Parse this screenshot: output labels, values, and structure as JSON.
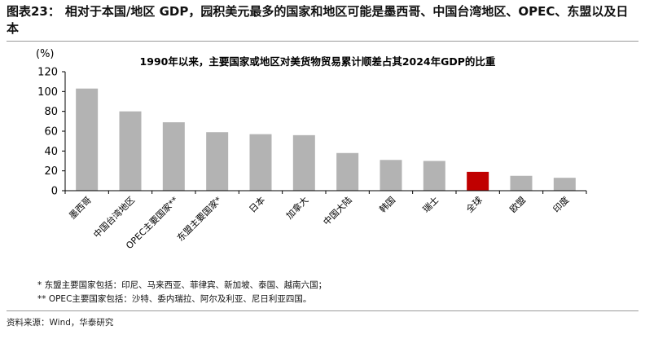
{
  "figure": {
    "label": "图表23：",
    "title": "相对于本国/地区 GDP，园积美元最多的国家和地区可能是墨西哥、中国台湾地区、OPEC、东盟以及日本"
  },
  "chart_data": {
    "type": "bar",
    "title": "1990年以来，主要国家或地区对美货物贸易累计顺差占其2024年GDP的比重",
    "ylabel": "(%)",
    "xlabel": "",
    "ylim": [
      0,
      120
    ],
    "yticks": [
      0,
      20,
      40,
      60,
      80,
      100,
      120
    ],
    "grid": false,
    "categories": [
      "墨西哥",
      "中国台湾地区",
      "OPEC主要国家**",
      "东盟主要国家*",
      "日本",
      "加拿大",
      "中国大陆",
      "韩国",
      "瑞士",
      "全球",
      "欧盟",
      "印度"
    ],
    "values": [
      103,
      80,
      69,
      59,
      57,
      56,
      38,
      31,
      30,
      19,
      15,
      13
    ],
    "bar_color": "#b3b3b3",
    "highlight_color": "#c00000",
    "highlight_index": 9
  },
  "notes": [
    "* 东盟主要国家包括：印尼、马来西亚、菲律宾、新加坡、泰国、越南六国；",
    "** OPEC主要国家包括：沙特、委内瑞拉、阿尔及利亚、尼日利亚四国。"
  ],
  "source": "资料来源：Wind，华泰研究"
}
